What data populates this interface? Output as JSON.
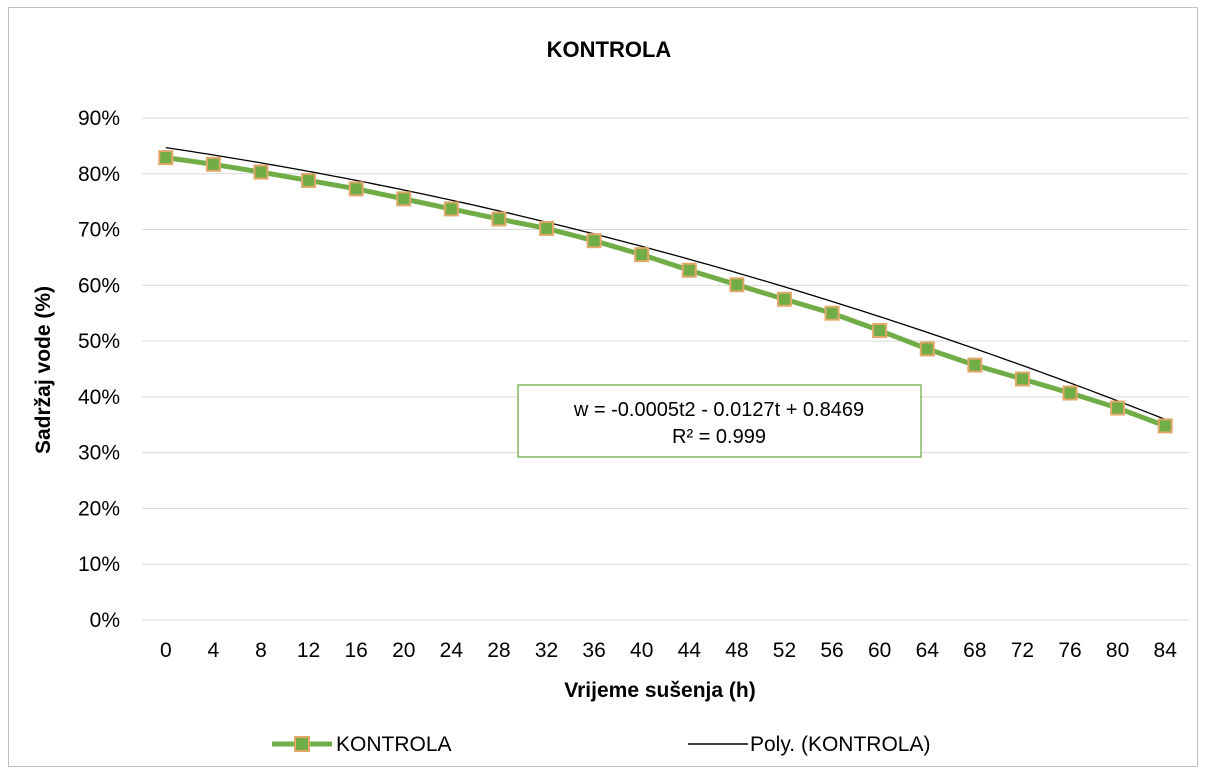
{
  "chart_data": {
    "type": "line",
    "title": "KONTROLA",
    "xlabel": "Vrijeme sušenja (h)",
    "ylabel": "Sadržaj vode (%)",
    "x": [
      0,
      4,
      8,
      12,
      16,
      20,
      24,
      28,
      32,
      36,
      40,
      44,
      48,
      52,
      56,
      60,
      64,
      68,
      72,
      76,
      80,
      84
    ],
    "x_tick_labels": [
      "0",
      "4",
      "8",
      "12",
      "16",
      "20",
      "24",
      "28",
      "32",
      "36",
      "40",
      "44",
      "48",
      "52",
      "56",
      "60",
      "64",
      "68",
      "72",
      "76",
      "80",
      "84"
    ],
    "y_tick_labels": [
      "0%",
      "10%",
      "20%",
      "30%",
      "40%",
      "50%",
      "60%",
      "70%",
      "80%",
      "90%"
    ],
    "ylim": [
      0,
      0.9
    ],
    "grid": true,
    "legend_position": "bottom",
    "series": [
      {
        "name": "KONTROLA",
        "color": "#70ad47",
        "marker_color": "#e2a86a",
        "values": [
          0.829,
          0.817,
          0.803,
          0.788,
          0.773,
          0.755,
          0.737,
          0.719,
          0.702,
          0.68,
          0.655,
          0.627,
          0.601,
          0.575,
          0.55,
          0.519,
          0.486,
          0.457,
          0.432,
          0.407,
          0.38,
          0.348
        ]
      }
    ],
    "trendline": {
      "name": "Poly. (KONTROLA)",
      "color": "#000000",
      "coefficients": [
        -0.0005,
        -0.0127,
        0.8469
      ]
    },
    "equation_lines": [
      "w = -0.0005t2 - 0.0127t + 0.8469",
      "R² = 0.999"
    ]
  }
}
